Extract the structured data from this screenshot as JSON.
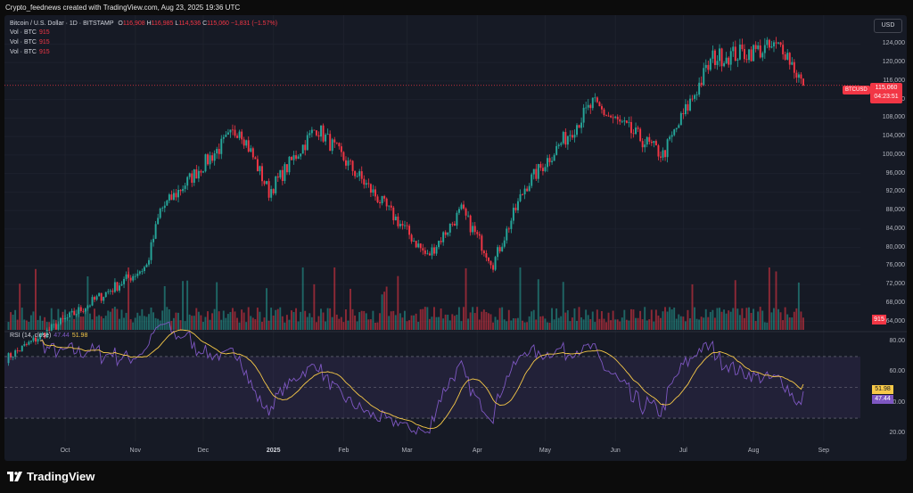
{
  "header": {
    "created_line": "Crypto_feednews created with TradingView.com, Aug 23, 2025 19:36 UTC"
  },
  "legend": {
    "symbol": "Bitcoin / U.S. Dollar · 1D · BITSTAMP",
    "open_label": "O",
    "open": "116,908",
    "high_label": "H",
    "high": "116,985",
    "low_label": "L",
    "low": "114,536",
    "close_label": "C",
    "close": "115,060",
    "change": "−1,831 (−1.57%)"
  },
  "volume_legends": [
    {
      "label": "Vol · BTC",
      "value": "915"
    },
    {
      "label": "Vol · BTC",
      "value": "915"
    },
    {
      "label": "Vol · BTC",
      "value": "915"
    }
  ],
  "currency_button": "USD",
  "price_axis": [
    "124,000",
    "120,000",
    "116,000",
    "112,000",
    "108,000",
    "104,000",
    "100,000",
    "96,000",
    "92,000",
    "88,000",
    "84,000",
    "80,000",
    "76,000",
    "72,000",
    "68,000",
    "64,000"
  ],
  "price_marker": {
    "symbol": "BTCUSD",
    "price": "115,060",
    "countdown": "04:23:51"
  },
  "volume_marker": "915",
  "rsi": {
    "title": "RSI (14, close)",
    "value": "47.44",
    "ma_value": "51.98",
    "axis": [
      "80.00",
      "60.00",
      "40.00",
      "20.00"
    ]
  },
  "time_axis": [
    {
      "label": "Oct",
      "bold": false
    },
    {
      "label": "Nov",
      "bold": false
    },
    {
      "label": "Dec",
      "bold": false
    },
    {
      "label": "2025",
      "bold": true
    },
    {
      "label": "Feb",
      "bold": false
    },
    {
      "label": "Mar",
      "bold": false
    },
    {
      "label": "Apr",
      "bold": false
    },
    {
      "label": "May",
      "bold": false
    },
    {
      "label": "Jun",
      "bold": false
    },
    {
      "label": "Jul",
      "bold": false
    },
    {
      "label": "Aug",
      "bold": false
    },
    {
      "label": "Sep",
      "bold": false
    }
  ],
  "brand": "TradingView",
  "colors": {
    "up": "#26a69a",
    "down": "#f23645",
    "rsi": "#7e57c2",
    "rsi_ma": "#f7c948",
    "background": "#161a25"
  },
  "chart_data": {
    "type": "candlestick",
    "title": "",
    "ylim": [
      62000,
      126000
    ],
    "close_anchors": [
      {
        "x": "Sep 5",
        "y": 56000
      },
      {
        "x": "Nov 6",
        "y": 76000
      },
      {
        "x": "Nov 12",
        "y": 88000
      },
      {
        "x": "Dec 5",
        "y": 100000
      },
      {
        "x": "Dec 17",
        "y": 106000
      },
      {
        "x": "Dec 30",
        "y": 92000
      },
      {
        "x": "Jan 20",
        "y": 106000
      },
      {
        "x": "Feb 3",
        "y": 98000
      },
      {
        "x": "Feb 28",
        "y": 84000
      },
      {
        "x": "Mar 10",
        "y": 78000
      },
      {
        "x": "Mar 25",
        "y": 88000
      },
      {
        "x": "Apr 8",
        "y": 76500
      },
      {
        "x": "Apr 22",
        "y": 93000
      },
      {
        "x": "May 22",
        "y": 111000
      },
      {
        "x": "Jun 22",
        "y": 100000
      },
      {
        "x": "Jul 14",
        "y": 121000
      },
      {
        "x": "Aug 14",
        "y": 123500
      },
      {
        "x": "Aug 23",
        "y": 115060
      }
    ],
    "rsi_range": [
      20,
      80
    ],
    "rsi_bands": [
      30,
      50,
      70
    ],
    "rsi_last": 47.44,
    "rsi_ma_last": 51.98
  }
}
